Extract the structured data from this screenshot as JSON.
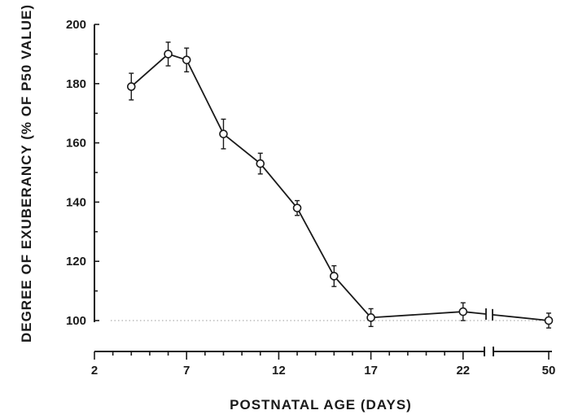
{
  "chart_data": {
    "type": "line",
    "title": "",
    "xlabel": "POSTNATAL AGE (DAYS)",
    "ylabel": "DEGREE OF EXUBERANCY (% OF P50 VALUE)",
    "x_ticks": [
      "2",
      "7",
      "12",
      "17",
      "22",
      "50"
    ],
    "y_ticks": [
      100,
      120,
      140,
      160,
      180,
      200
    ],
    "ylim": [
      100,
      200
    ],
    "axis_break": "between 22 and 50 on the x axis",
    "reference_line": {
      "y": 100,
      "style": "dotted"
    },
    "series": [
      {
        "x": [
          4,
          6,
          7,
          9,
          11,
          13,
          15,
          17,
          22,
          50
        ],
        "y": [
          179,
          190,
          188,
          163,
          153,
          138,
          115,
          101,
          103,
          100
        ],
        "error": [
          4.5,
          4,
          4,
          5,
          3.5,
          2.5,
          3.5,
          3,
          3,
          2.5
        ],
        "marker": "open-circle"
      }
    ],
    "grid": false,
    "legend": "none"
  }
}
